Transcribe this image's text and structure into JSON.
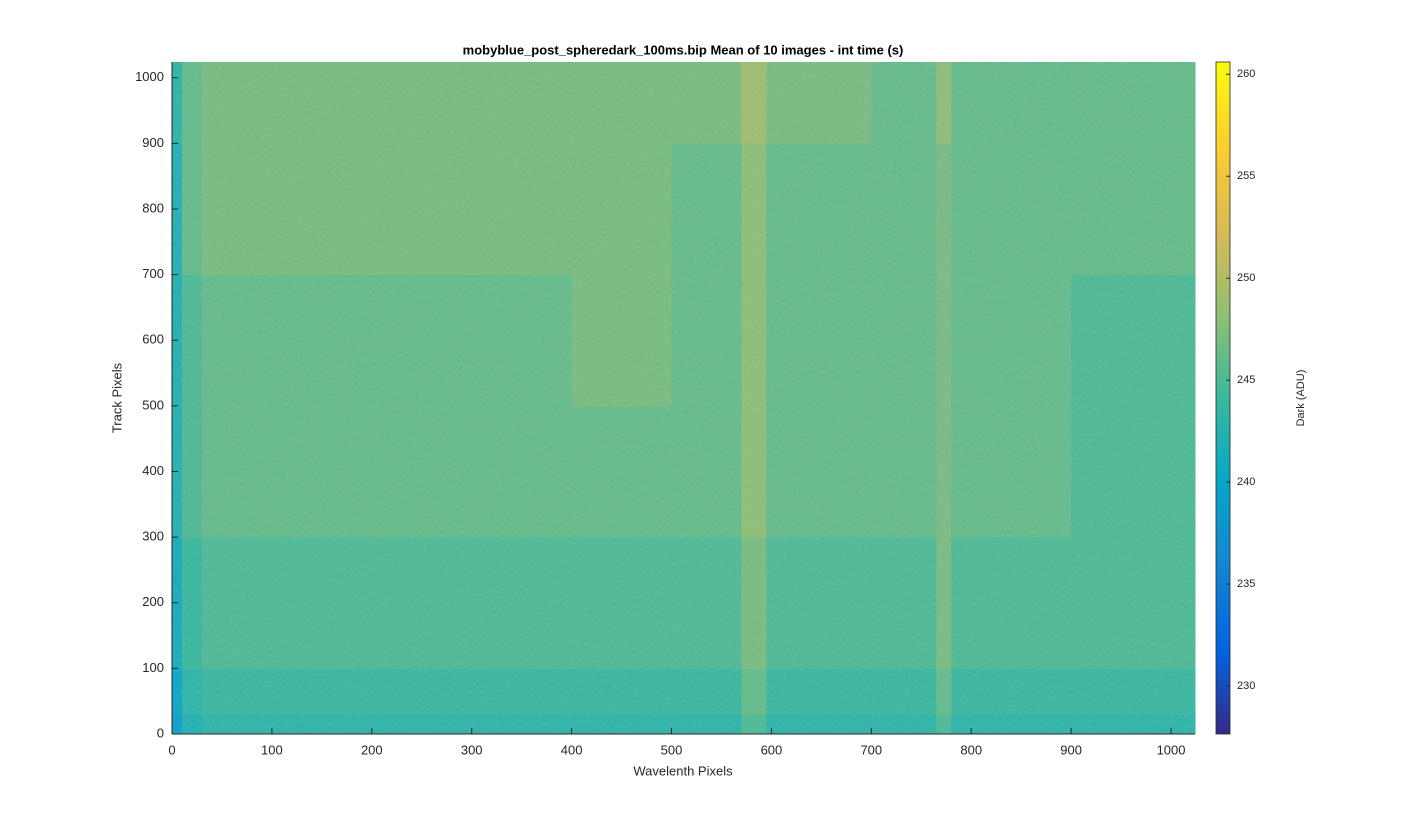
{
  "chart_data": {
    "type": "heatmap",
    "title": "mobyblue_post_spheredark_100ms.bip  Mean of 10 images - int time (s)",
    "x_label": "Wavelenth Pixels",
    "y_label": "Track Pixels",
    "colorbar_label": "Dark (ADU)",
    "x": [
      0,
      10,
      30,
      100,
      200,
      300,
      400,
      500,
      570,
      595,
      700,
      765,
      780,
      900,
      1024
    ],
    "y": [
      0,
      30,
      100,
      300,
      500,
      700,
      900,
      1024
    ],
    "values": [
      [
        239,
        242,
        243,
        243,
        243,
        243,
        243,
        243,
        245,
        243,
        243,
        245,
        243,
        243
      ],
      [
        240,
        243,
        244,
        244,
        244,
        244,
        244,
        244,
        246,
        244,
        244,
        246,
        244,
        244
      ],
      [
        241,
        244,
        245,
        245,
        245,
        245,
        245,
        245,
        247,
        245,
        245,
        247,
        245,
        245
      ],
      [
        242,
        245,
        246,
        246,
        246,
        246,
        246,
        246,
        248,
        246,
        246,
        247,
        246,
        245
      ],
      [
        242,
        245,
        246,
        246,
        246,
        246,
        247,
        246,
        248,
        246,
        246,
        247,
        246,
        245
      ],
      [
        242,
        246,
        247,
        247,
        247,
        247,
        247,
        246,
        248,
        246,
        246,
        247,
        246,
        246
      ],
      [
        243,
        246,
        247,
        247,
        247,
        247,
        247,
        247,
        249,
        247,
        246,
        248,
        246,
        246
      ]
    ],
    "xlim": [
      0,
      1024
    ],
    "ylim": [
      0,
      1024
    ],
    "xticks": [
      0,
      100,
      200,
      300,
      400,
      500,
      600,
      700,
      800,
      900,
      1000
    ],
    "yticks": [
      0,
      100,
      200,
      300,
      400,
      500,
      600,
      700,
      800,
      900,
      1000
    ],
    "clim": [
      227.65,
      260.6
    ],
    "cticks": [
      230,
      235,
      240,
      245,
      250,
      255,
      260
    ],
    "colormap": [
      "#352a87",
      "#0363e1",
      "#1485d4",
      "#06a7c6",
      "#38b99e",
      "#92bf73",
      "#d9ba56",
      "#fcce2e",
      "#f9fb0e"
    ]
  }
}
